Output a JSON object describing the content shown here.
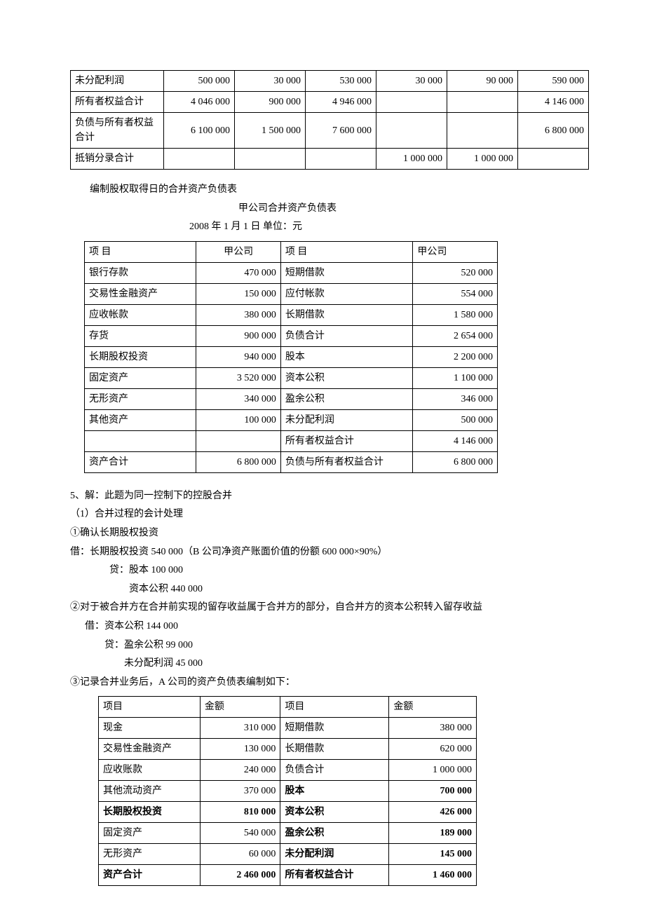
{
  "table1": {
    "rows": [
      {
        "label": "未分配利润",
        "c1": "500 000",
        "c2": "30 000",
        "c3": "530  000",
        "c4": "30  000",
        "c5": "90  000",
        "c6": "590  000"
      },
      {
        "label": "所有者权益合计",
        "c1": "4 046 000",
        "c2": "900 000",
        "c3": "4  946  000",
        "c4": "",
        "c5": "",
        "c6": "4  146  000"
      },
      {
        "label": "负债与所有者权益合计",
        "c1": "6 100 000",
        "c2": "1 500 000",
        "c3": "7  600  000",
        "c4": "",
        "c5": "",
        "c6": "6  800  000"
      },
      {
        "label": "抵销分录合计",
        "c1": "",
        "c2": "",
        "c3": "",
        "c4": "1  000  000",
        "c5": "1  000  000",
        "c6": ""
      }
    ]
  },
  "section1": {
    "title_line": "编制股权取得日的合并资产负债表",
    "subtitle": "甲公司合并资产负债表",
    "date_unit": "2008 年 1 月 1 日                     单位：元"
  },
  "table2": {
    "header": {
      "h1": " 项    目",
      "h2": "甲公司",
      "h3": " 项    目",
      "h4": "甲公司"
    },
    "rows": [
      {
        "l_label": "银行存款",
        "l_val": "470 000",
        "r_label": "短期借款",
        "r_val": "520 000"
      },
      {
        "l_label": "交易性金融资产",
        "l_val": "150 000",
        "r_label": "应付帐款",
        "r_val": "554 000"
      },
      {
        "l_label": "应收帐款",
        "l_val": "380 000",
        "r_label": "长期借款",
        "r_val": "1 580 000"
      },
      {
        "l_label": "存货",
        "l_val": "900 000",
        "r_label": "负债合计",
        "r_val": "2 654 000"
      },
      {
        "l_label": "长期股权投资",
        "l_val": "940 000",
        "r_label": "股本",
        "r_val": "2 200 000"
      },
      {
        "l_label": "固定资产",
        "l_val": "3 520 000",
        "r_label": "资本公积",
        "r_val": "1 100 000"
      },
      {
        "l_label": "无形资产",
        "l_val": "340 000",
        "r_label": "盈余公积",
        "r_val": "346 000"
      },
      {
        "l_label": "其他资产",
        "l_val": "100  000",
        "r_label": "未分配利润",
        "r_val": "500 000"
      },
      {
        "l_label": "",
        "l_val": "",
        "r_label": "所有者权益合计",
        "r_val": "4 146 000"
      },
      {
        "l_label": "资产合计",
        "l_val": "6 800 000",
        "r_label": "负债与所有者权益合计",
        "r_val": "6 800 000"
      }
    ]
  },
  "section2": {
    "line1": "5、解：此题为同一控制下的控股合并",
    "line2": "（1）合并过程的会计处理",
    "line3": "①确认长期股权投资",
    "line4": "借：长期股权投资     540 000（B 公司净资产账面价值的份额 600 000×90%）",
    "line5": "贷：股本            100 000",
    "line6": "资本公积     440 000",
    "line7": "②对于被合并方在合并前实现的留存收益属于合并方的部分，自合并方的资本公积转入留存收益",
    "line8": "借：资本公积     144  000",
    "line9": "贷：盈余公积       99  000",
    "line10": "未分配利润   45  000",
    "line11": "③记录合并业务后，A 公司的资产负债表编制如下："
  },
  "table3": {
    "header": {
      "h1": "项目",
      "h2": "金额",
      "h3": "项目",
      "h4": "金额"
    },
    "rows": [
      {
        "l_label": "现金",
        "l_val": "310 000",
        "r_label": "短期借款",
        "r_val": "380 000",
        "bold": [
          false,
          false,
          false,
          false
        ]
      },
      {
        "l_label": "交易性金融资产",
        "l_val": "130 000",
        "r_label": "长期借款",
        "r_val": "620 000",
        "bold": [
          false,
          false,
          false,
          false
        ]
      },
      {
        "l_label": "应收账款",
        "l_val": "240 000",
        "r_label": "负债合计",
        "r_val": "1 000 000",
        "bold": [
          false,
          false,
          false,
          false
        ]
      },
      {
        "l_label": "其他流动资产",
        "l_val": "370 000",
        "r_label": "股本",
        "r_val": "700 000",
        "bold": [
          false,
          false,
          true,
          true
        ]
      },
      {
        "l_label": "长期股权投资",
        "l_val": "810 000",
        "r_label": "资本公积",
        "r_val": "426 000",
        "bold": [
          true,
          true,
          true,
          true
        ]
      },
      {
        "l_label": "固定资产",
        "l_val": "540 000",
        "r_label": "盈余公积",
        "r_val": "189 000",
        "bold": [
          false,
          false,
          true,
          true
        ]
      },
      {
        "l_label": "无形资产",
        "l_val": "60 000",
        "r_label": "未分配利润",
        "r_val": "145 000",
        "bold": [
          false,
          false,
          true,
          true
        ]
      },
      {
        "l_label": "资产合计",
        "l_val": "2 460 000",
        "r_label": "所有者权益合计",
        "r_val": "1 460 000",
        "bold": [
          true,
          true,
          true,
          true
        ]
      }
    ]
  }
}
